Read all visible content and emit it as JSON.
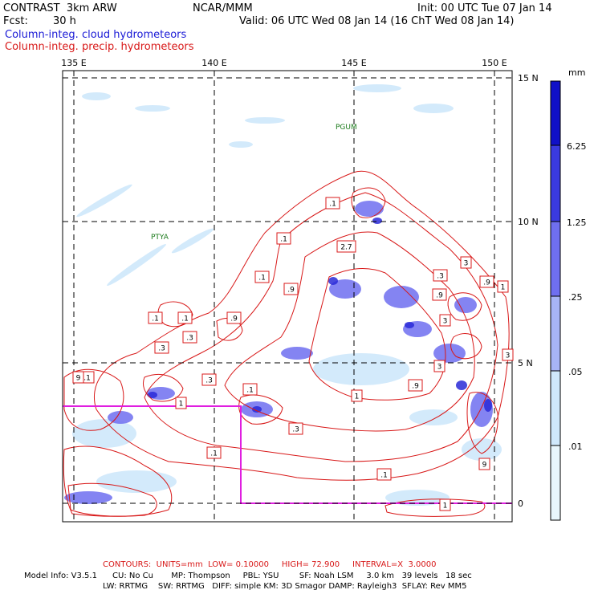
{
  "header": {
    "title": "CONTRAST  3km ARW",
    "org": "NCAR/MMM",
    "init": "Init: 00 UTC Tue 07 Jan 14",
    "fcst_label": "Fcst:",
    "fcst_value": "30 h",
    "valid": "Valid: 06 UTC Wed 08 Jan 14 (16 ChT Wed 08 Jan 14)",
    "field_cloud": "Column-integ. cloud hydrometeors",
    "field_precip": "Column-integ. precip. hydrometeors"
  },
  "map": {
    "lon_labels": [
      "135 E",
      "140 E",
      "145 E",
      "150 E"
    ],
    "lat_labels": [
      "15 N",
      "10 N",
      "5 N",
      "0"
    ],
    "stations": [
      "PGUM",
      "PTYA"
    ],
    "contour_labels": [
      ".1",
      ".1",
      ".1",
      ".1",
      ".1",
      ".1",
      ".1",
      ".1",
      ".1",
      ".3",
      ".3",
      ".3",
      ".3",
      ".3",
      ".9",
      ".9",
      ".9",
      ".9",
      ".9",
      "2.7",
      "1",
      "3",
      "3",
      "9",
      "3",
      "1",
      "1",
      "3",
      "9",
      "1"
    ]
  },
  "colorbar": {
    "unit": "mm",
    "levels": [
      "6.25",
      "1.25",
      ".25",
      ".05",
      ".01"
    ],
    "colors": [
      "#1010c8",
      "#3a3ae0",
      "#6f6ff0",
      "#a7b4f6",
      "#cfe8fb",
      "#e8f6fc",
      "#ffffff"
    ]
  },
  "footer": {
    "contours": "CONTOURS:  UNITS=mm  LOW= 0.10000     HIGH= 72.900     INTERVAL=X  3.0000",
    "model_line1": "Model Info: V3.5.1      CU: No Cu       MP: Thompson     PBL: YSU        SF: Noah LSM     3.0 km   39 levels   18 sec",
    "model_line2": "LW: RRTMG    SW: RRTMG   DIFF: simple KM: 3D Smagor DAMP: Rayleigh3  SFLAY: Rev MM5"
  }
}
